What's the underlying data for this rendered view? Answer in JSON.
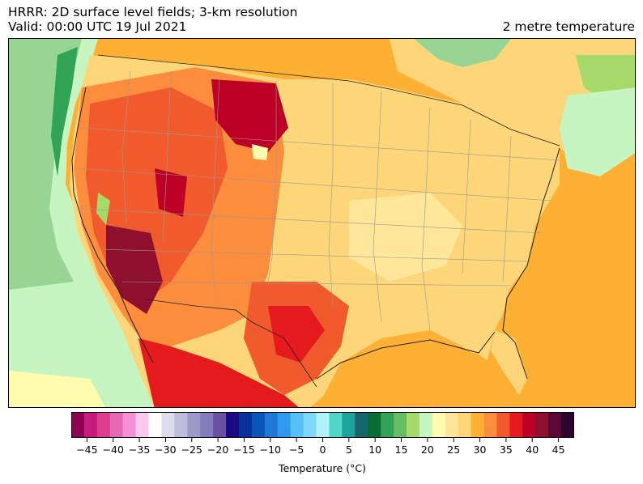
{
  "header": {
    "title_line1": "HRRR: 2D surface level fields; 3-km resolution",
    "title_line2": "Valid: 00:00 UTC 19 Jul 2021",
    "field_name": "2 metre temperature"
  },
  "map": {
    "region": "Contiguous United States",
    "field": "2 metre temperature",
    "background_ocean_color": "#fdb034",
    "land_color_warm": "#fdd67a",
    "hot_color": "#e41a1c",
    "very_hot_color": "#a50026",
    "cool_color": "#c7f5c1",
    "cold_ocean_color": "#98d594"
  },
  "colorbar": {
    "label": "Temperature (°C)",
    "min": -48,
    "max": 48,
    "step": 2.5,
    "tick_values": [
      -45,
      -40,
      -35,
      -30,
      -25,
      -20,
      -15,
      -10,
      -5,
      0,
      5,
      10,
      15,
      20,
      25,
      30,
      35,
      40,
      45
    ],
    "tick_labels": [
      "−45",
      "−40",
      "−35",
      "−30",
      "−25",
      "−20",
      "−15",
      "−10",
      "−5",
      "0",
      "5",
      "10",
      "15",
      "20",
      "25",
      "30",
      "35",
      "40",
      "45"
    ],
    "colors": [
      "#8e0152",
      "#c51b7d",
      "#de3d8e",
      "#e468b5",
      "#f58fd8",
      "#fbc8ee",
      "#ffffff",
      "#dcdcec",
      "#bfbcdc",
      "#9e9ac8",
      "#807dba",
      "#6a51a3",
      "#1c0a84",
      "#08309a",
      "#0a55b8",
      "#1f79d8",
      "#2f9aef",
      "#55c1f7",
      "#7fd7fb",
      "#b0f1fb",
      "#4fd6c6",
      "#1da39b",
      "#17666f",
      "#076b32",
      "#31a354",
      "#66bd63",
      "#a6d96a",
      "#c7f5c1",
      "#fffcb0",
      "#fee79b",
      "#fdd67a",
      "#fdb034",
      "#fb8d3c",
      "#f15a2c",
      "#e41a1c",
      "#bd0026",
      "#8e0f2e",
      "#5c0837",
      "#2d0430"
    ]
  }
}
